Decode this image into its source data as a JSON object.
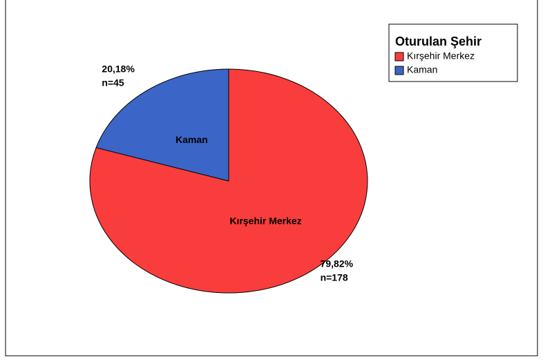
{
  "chart_data": {
    "type": "pie",
    "legend_title": "Oturulan Şehir",
    "categories": [
      "Kırşehir Merkez",
      "Kaman"
    ],
    "values": [
      79.82,
      20.18
    ],
    "value_labels": [
      "79,82%",
      "20,18%"
    ],
    "counts": [
      178,
      45
    ],
    "count_labels": [
      "n=178",
      "n=45"
    ],
    "colors": [
      "#f93d3d",
      "#3b65c6"
    ],
    "legend": "upper right"
  }
}
